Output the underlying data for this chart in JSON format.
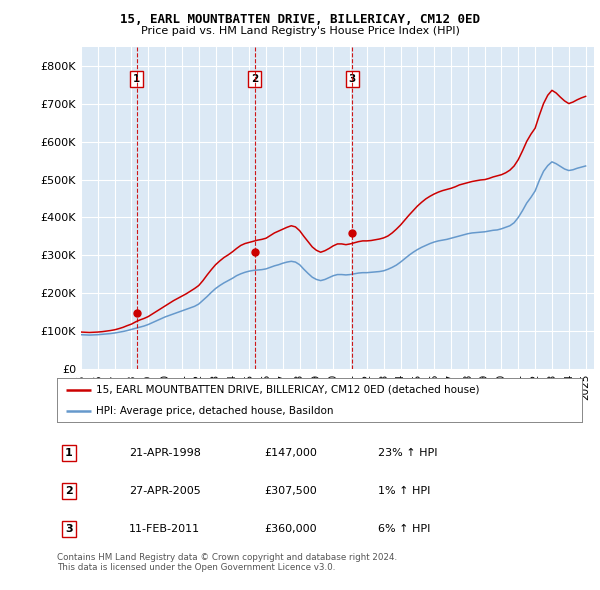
{
  "title1": "15, EARL MOUNTBATTEN DRIVE, BILLERICAY, CM12 0ED",
  "title2": "Price paid vs. HM Land Registry's House Price Index (HPI)",
  "ylim": [
    0,
    850000
  ],
  "yticks": [
    0,
    100000,
    200000,
    300000,
    400000,
    500000,
    600000,
    700000,
    800000
  ],
  "ytick_labels": [
    "£0",
    "£100K",
    "£200K",
    "£300K",
    "£400K",
    "£500K",
    "£600K",
    "£700K",
    "£800K"
  ],
  "xlim_start": 1995.0,
  "xlim_end": 2025.5,
  "sale_dates": [
    1998.31,
    2005.32,
    2011.12
  ],
  "sale_prices": [
    147000,
    307500,
    360000
  ],
  "sale_labels": [
    "1",
    "2",
    "3"
  ],
  "legend_red": "15, EARL MOUNTBATTEN DRIVE, BILLERICAY, CM12 0ED (detached house)",
  "legend_blue": "HPI: Average price, detached house, Basildon",
  "table_rows": [
    {
      "num": "1",
      "date": "21-APR-1998",
      "price": "£147,000",
      "hpi": "23% ↑ HPI"
    },
    {
      "num": "2",
      "date": "27-APR-2005",
      "price": "£307,500",
      "hpi": "1% ↑ HPI"
    },
    {
      "num": "3",
      "date": "11-FEB-2011",
      "price": "£360,000",
      "hpi": "6% ↑ HPI"
    }
  ],
  "footnote1": "Contains HM Land Registry data © Crown copyright and database right 2024.",
  "footnote2": "This data is licensed under the Open Government Licence v3.0.",
  "hpi_years": [
    1995.0,
    1995.25,
    1995.5,
    1995.75,
    1996.0,
    1996.25,
    1996.5,
    1996.75,
    1997.0,
    1997.25,
    1997.5,
    1997.75,
    1998.0,
    1998.25,
    1998.5,
    1998.75,
    1999.0,
    1999.25,
    1999.5,
    1999.75,
    2000.0,
    2000.25,
    2000.5,
    2000.75,
    2001.0,
    2001.25,
    2001.5,
    2001.75,
    2002.0,
    2002.25,
    2002.5,
    2002.75,
    2003.0,
    2003.25,
    2003.5,
    2003.75,
    2004.0,
    2004.25,
    2004.5,
    2004.75,
    2005.0,
    2005.25,
    2005.5,
    2005.75,
    2006.0,
    2006.25,
    2006.5,
    2006.75,
    2007.0,
    2007.25,
    2007.5,
    2007.75,
    2008.0,
    2008.25,
    2008.5,
    2008.75,
    2009.0,
    2009.25,
    2009.5,
    2009.75,
    2010.0,
    2010.25,
    2010.5,
    2010.75,
    2011.0,
    2011.25,
    2011.5,
    2011.75,
    2012.0,
    2012.25,
    2012.5,
    2012.75,
    2013.0,
    2013.25,
    2013.5,
    2013.75,
    2014.0,
    2014.25,
    2014.5,
    2014.75,
    2015.0,
    2015.25,
    2015.5,
    2015.75,
    2016.0,
    2016.25,
    2016.5,
    2016.75,
    2017.0,
    2017.25,
    2017.5,
    2017.75,
    2018.0,
    2018.25,
    2018.5,
    2018.75,
    2019.0,
    2019.25,
    2019.5,
    2019.75,
    2020.0,
    2020.25,
    2020.5,
    2020.75,
    2021.0,
    2021.25,
    2021.5,
    2021.75,
    2022.0,
    2022.25,
    2022.5,
    2022.75,
    2023.0,
    2023.25,
    2023.5,
    2023.75,
    2024.0,
    2024.25,
    2024.5,
    2024.75,
    2025.0
  ],
  "hpi_values": [
    90000,
    89500,
    89000,
    89500,
    90000,
    91000,
    92000,
    93000,
    94500,
    96500,
    98500,
    101000,
    104000,
    107000,
    110000,
    113000,
    117000,
    122000,
    127000,
    132000,
    137000,
    141000,
    145000,
    149000,
    153000,
    157000,
    161000,
    165000,
    171000,
    181000,
    191000,
    202000,
    212000,
    220000,
    227000,
    233000,
    239000,
    246000,
    251000,
    255000,
    258000,
    260000,
    261000,
    262000,
    264000,
    268000,
    272000,
    275000,
    279000,
    282000,
    284000,
    282000,
    275000,
    263000,
    252000,
    242000,
    236000,
    233000,
    236000,
    241000,
    246000,
    249000,
    249000,
    248000,
    249000,
    251000,
    253000,
    254000,
    254000,
    255000,
    256000,
    257000,
    259000,
    263000,
    268000,
    274000,
    282000,
    291000,
    300000,
    308000,
    315000,
    321000,
    326000,
    331000,
    335000,
    338000,
    340000,
    342000,
    345000,
    348000,
    351000,
    354000,
    357000,
    359000,
    360000,
    361000,
    362000,
    364000,
    366000,
    367000,
    370000,
    374000,
    378000,
    386000,
    400000,
    418000,
    438000,
    453000,
    470000,
    498000,
    522000,
    537000,
    547000,
    542000,
    535000,
    528000,
    524000,
    526000,
    530000,
    533000,
    536000
  ],
  "red_years": [
    1995.0,
    1995.25,
    1995.5,
    1995.75,
    1996.0,
    1996.25,
    1996.5,
    1996.75,
    1997.0,
    1997.25,
    1997.5,
    1997.75,
    1998.0,
    1998.25,
    1998.5,
    1998.75,
    1999.0,
    1999.25,
    1999.5,
    1999.75,
    2000.0,
    2000.25,
    2000.5,
    2000.75,
    2001.0,
    2001.25,
    2001.5,
    2001.75,
    2002.0,
    2002.25,
    2002.5,
    2002.75,
    2003.0,
    2003.25,
    2003.5,
    2003.75,
    2004.0,
    2004.25,
    2004.5,
    2004.75,
    2005.0,
    2005.25,
    2005.5,
    2005.75,
    2006.0,
    2006.25,
    2006.5,
    2006.75,
    2007.0,
    2007.25,
    2007.5,
    2007.75,
    2008.0,
    2008.25,
    2008.5,
    2008.75,
    2009.0,
    2009.25,
    2009.5,
    2009.75,
    2010.0,
    2010.25,
    2010.5,
    2010.75,
    2011.0,
    2011.25,
    2011.5,
    2011.75,
    2012.0,
    2012.25,
    2012.5,
    2012.75,
    2013.0,
    2013.25,
    2013.5,
    2013.75,
    2014.0,
    2014.25,
    2014.5,
    2014.75,
    2015.0,
    2015.25,
    2015.5,
    2015.75,
    2016.0,
    2016.25,
    2016.5,
    2016.75,
    2017.0,
    2017.25,
    2017.5,
    2017.75,
    2018.0,
    2018.25,
    2018.5,
    2018.75,
    2019.0,
    2019.25,
    2019.5,
    2019.75,
    2020.0,
    2020.25,
    2020.5,
    2020.75,
    2021.0,
    2021.25,
    2021.5,
    2021.75,
    2022.0,
    2022.25,
    2022.5,
    2022.75,
    2023.0,
    2023.25,
    2023.5,
    2023.75,
    2024.0,
    2024.25,
    2024.5,
    2024.75,
    2025.0
  ],
  "red_values": [
    97000,
    96500,
    96000,
    96500,
    97000,
    98000,
    99500,
    101000,
    103000,
    106000,
    109500,
    114000,
    118000,
    124000,
    129000,
    133000,
    138000,
    145000,
    152000,
    159000,
    166000,
    173000,
    180000,
    186000,
    192000,
    198000,
    205000,
    212000,
    220000,
    233000,
    248000,
    262000,
    275000,
    285000,
    294000,
    301000,
    309000,
    318000,
    326000,
    331000,
    334000,
    337000,
    340000,
    342000,
    345000,
    352000,
    359000,
    364000,
    369000,
    374000,
    378000,
    375000,
    365000,
    350000,
    336000,
    322000,
    313000,
    308000,
    312000,
    318000,
    325000,
    330000,
    330000,
    328000,
    330000,
    333000,
    336000,
    338000,
    338000,
    339000,
    341000,
    343000,
    346000,
    351000,
    359000,
    369000,
    380000,
    393000,
    406000,
    418000,
    430000,
    440000,
    449000,
    456000,
    462000,
    467000,
    471000,
    474000,
    477000,
    481000,
    486000,
    489000,
    492000,
    495000,
    497000,
    499000,
    500000,
    503000,
    507000,
    510000,
    513000,
    518000,
    525000,
    536000,
    553000,
    576000,
    601000,
    620000,
    636000,
    670000,
    701000,
    723000,
    736000,
    729000,
    718000,
    708000,
    701000,
    705000,
    711000,
    716000,
    720000
  ],
  "bg_color": "#dce9f5",
  "grid_color": "#ffffff",
  "red_line_color": "#cc0000",
  "blue_line_color": "#6699cc",
  "vline_color": "#cc0000",
  "box_edge_color": "#cc0000"
}
